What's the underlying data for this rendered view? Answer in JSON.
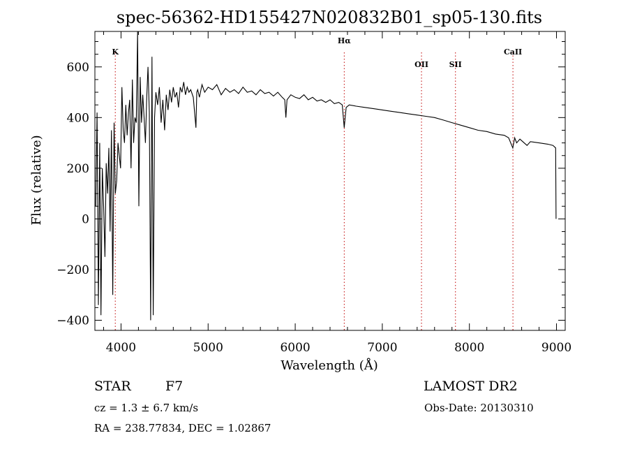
{
  "chart_data": {
    "type": "line",
    "title": "spec-56362-HD155427N020832B01_sp05-130.fits",
    "xlabel": "Wavelength (Å)",
    "ylabel": "Flux (relative)",
    "xlim": [
      3700,
      9100
    ],
    "ylim": [
      -440,
      740
    ],
    "xticks": [
      4000,
      5000,
      6000,
      7000,
      8000,
      9000
    ],
    "yticks": [
      -400,
      -200,
      0,
      200,
      400,
      600
    ],
    "line_color": "#000000",
    "marker_color": "#c00000",
    "grid": false,
    "lines": [
      {
        "label": "K",
        "wavelength": 3934
      },
      {
        "label": "Hα",
        "wavelength": 6563
      },
      {
        "label": "OII",
        "wavelength": 7450
      },
      {
        "label": "SII",
        "wavelength": 7840
      },
      {
        "label": "CaII",
        "wavelength": 8500
      }
    ],
    "series": [
      {
        "x": [
          3710,
          3725,
          3740,
          3755,
          3770,
          3785,
          3800,
          3815,
          3830,
          3845,
          3860,
          3875,
          3890,
          3905,
          3920,
          3935,
          3950,
          3965,
          3980,
          3995,
          4010,
          4025,
          4040,
          4055,
          4070,
          4085,
          4100,
          4115,
          4130,
          4145,
          4160,
          4175,
          4190,
          4205,
          4220,
          4235,
          4250,
          4265,
          4280,
          4295,
          4310,
          4325,
          4340,
          4355,
          4370,
          4385,
          4400,
          4420,
          4440,
          4460,
          4480,
          4500,
          4520,
          4540,
          4560,
          4580,
          4600,
          4620,
          4640,
          4660,
          4680,
          4700,
          4720,
          4740,
          4760,
          4780,
          4800,
          4830,
          4860,
          4870,
          4880,
          4900,
          4930,
          4960,
          5000,
          5050,
          5100,
          5150,
          5200,
          5250,
          5300,
          5350,
          5400,
          5450,
          5500,
          5550,
          5600,
          5650,
          5700,
          5750,
          5800,
          5850,
          5880,
          5893,
          5906,
          5950,
          6000,
          6050,
          6100,
          6150,
          6200,
          6250,
          6300,
          6350,
          6400,
          6450,
          6500,
          6540,
          6563,
          6585,
          6620,
          6700,
          6800,
          6900,
          7000,
          7100,
          7200,
          7300,
          7400,
          7500,
          7600,
          7700,
          7800,
          7900,
          8000,
          8100,
          8200,
          8300,
          8400,
          8450,
          8498,
          8520,
          8542,
          8580,
          8662,
          8700,
          8800,
          8900,
          8960,
          8990,
          8995
        ],
        "y": [
          50,
          420,
          -340,
          300,
          -380,
          200,
          50,
          -150,
          220,
          100,
          280,
          -50,
          350,
          -300,
          380,
          100,
          150,
          300,
          250,
          200,
          520,
          350,
          300,
          450,
          330,
          420,
          470,
          200,
          550,
          300,
          400,
          380,
          740,
          50,
          560,
          380,
          490,
          400,
          300,
          480,
          600,
          420,
          -400,
          640,
          -380,
          400,
          500,
          450,
          520,
          380,
          470,
          350,
          490,
          430,
          510,
          460,
          520,
          480,
          500,
          440,
          520,
          500,
          540,
          490,
          520,
          500,
          510,
          480,
          360,
          500,
          510,
          480,
          530,
          500,
          520,
          510,
          530,
          490,
          515,
          500,
          510,
          495,
          520,
          500,
          505,
          490,
          510,
          495,
          500,
          485,
          500,
          480,
          470,
          400,
          470,
          490,
          480,
          475,
          490,
          470,
          480,
          465,
          470,
          460,
          470,
          455,
          460,
          450,
          360,
          440,
          450,
          445,
          440,
          435,
          430,
          425,
          420,
          415,
          410,
          405,
          400,
          390,
          380,
          370,
          360,
          350,
          345,
          335,
          330,
          320,
          280,
          320,
          300,
          315,
          290,
          305,
          300,
          295,
          290,
          280,
          0
        ]
      }
    ]
  },
  "info": {
    "object_type": "STAR",
    "subclass": "F7",
    "survey": "LAMOST DR2",
    "cz": "cz = 1.3 ± 6.7 km/s",
    "obs_date": "Obs-Date: 20130310",
    "coords": "RA = 238.77834, DEC =   1.02867"
  }
}
